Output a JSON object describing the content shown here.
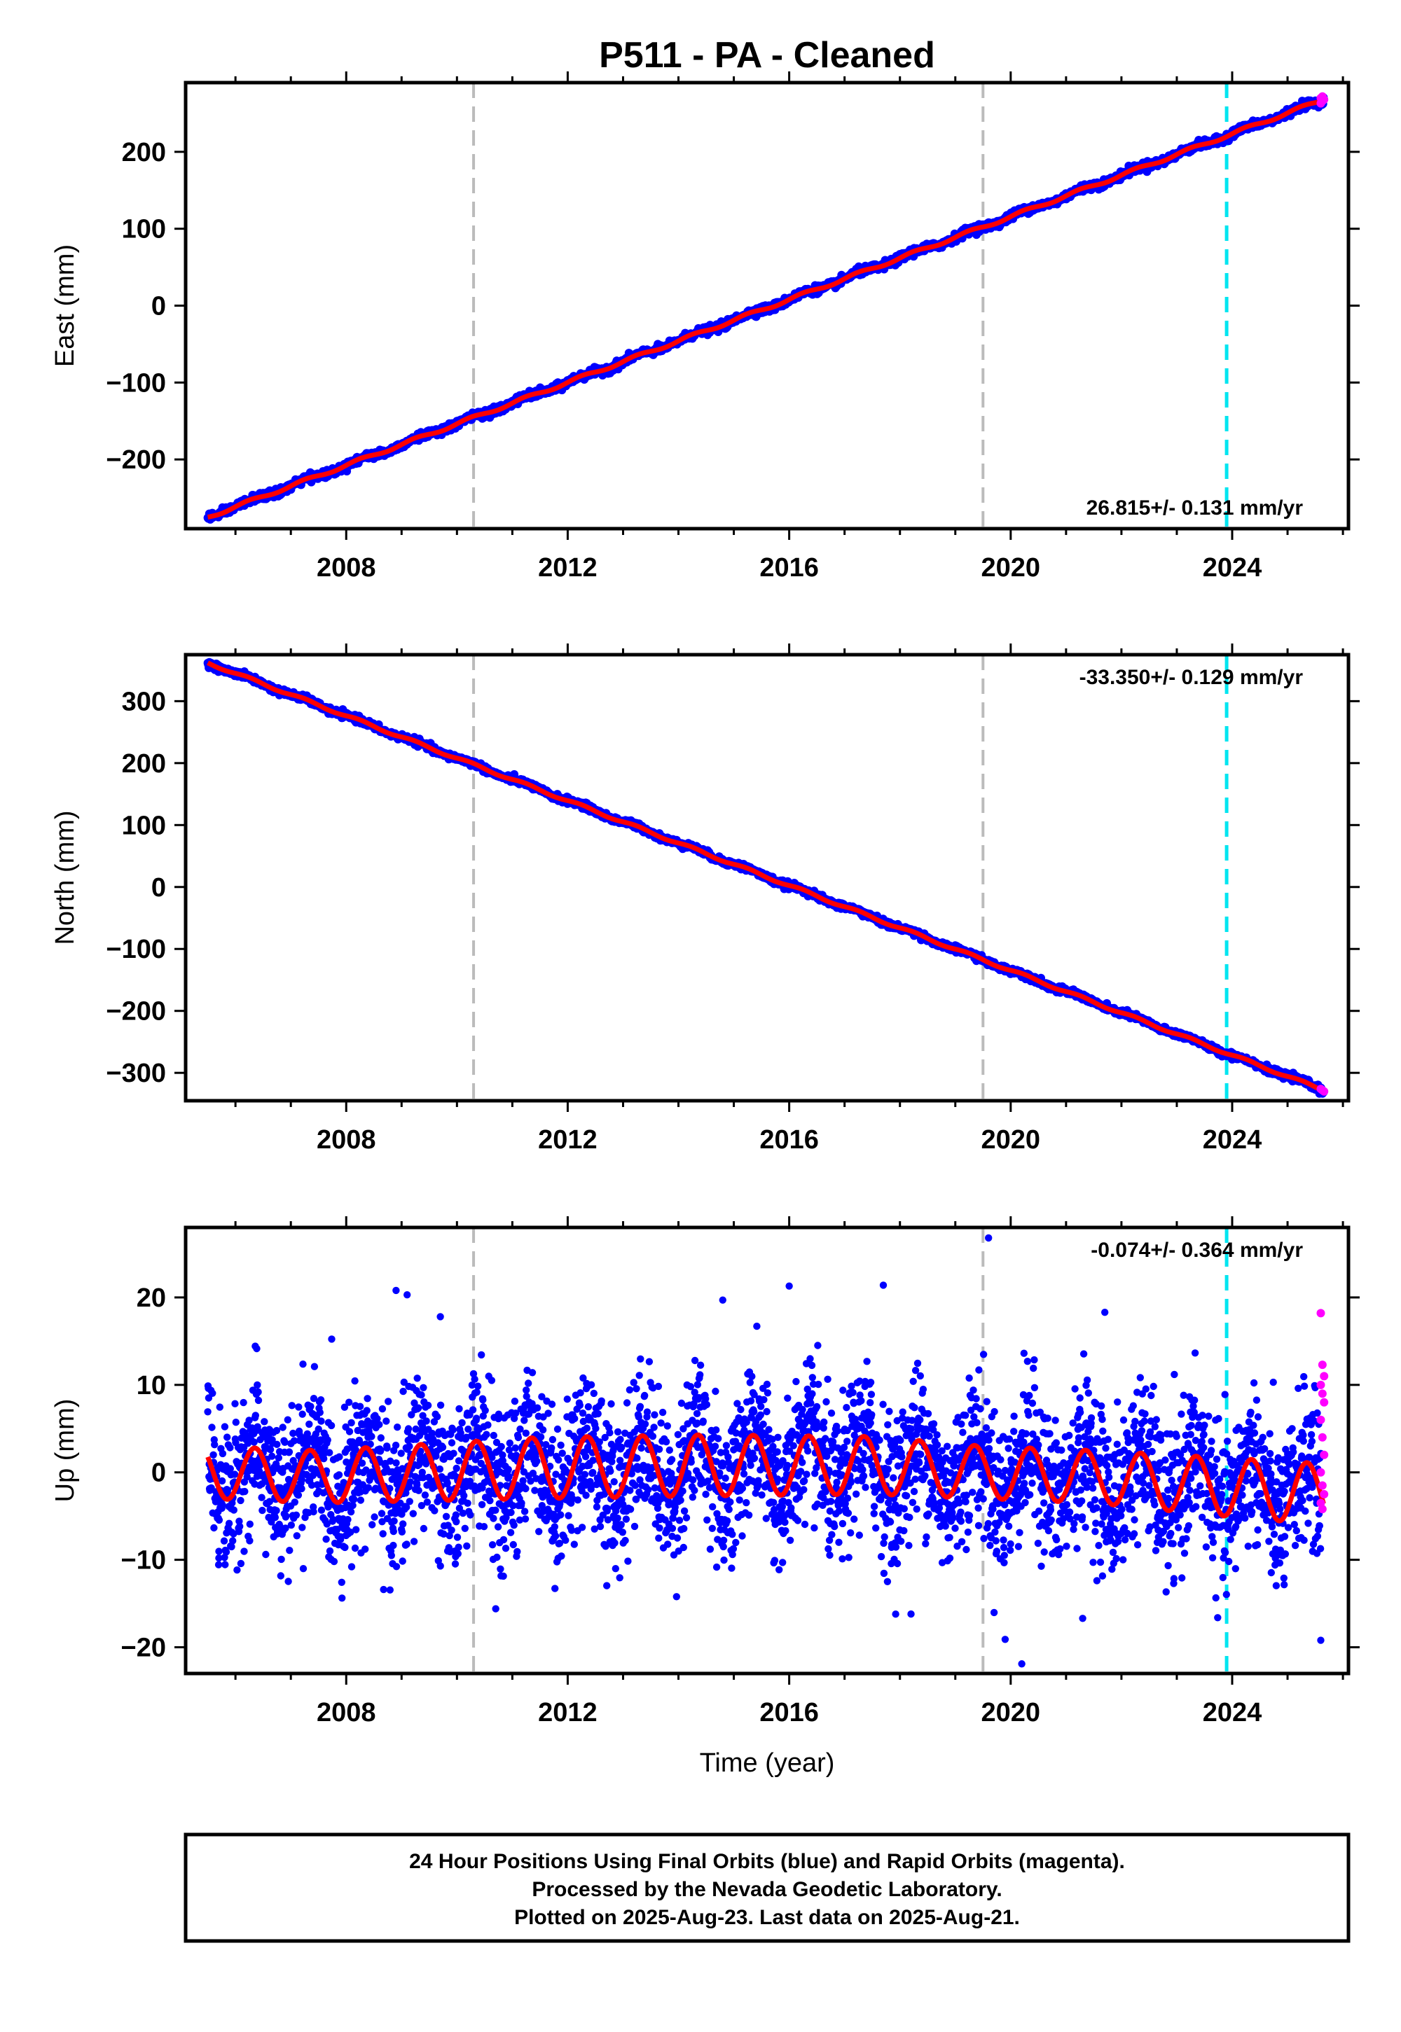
{
  "title": "P511  - PA - Cleaned",
  "colors": {
    "final": "#0000ff",
    "rapid": "#ff00ff",
    "model": "#ff0000",
    "event_gray": "#bbbbbb",
    "event_cyan": "#00e5f0"
  },
  "chart_data": [
    {
      "type": "scatter",
      "name": "east",
      "ylabel": "East (mm)",
      "xlabel": "",
      "xlim": [
        2005.1,
        2026.1
      ],
      "ylim": [
        -290,
        290
      ],
      "yticks": [
        200,
        100,
        0,
        -100,
        -200
      ],
      "ytick_labels": [
        "200",
        "100",
        "0",
        "−100",
        "−200"
      ],
      "xticks": [
        2008,
        2012,
        2016,
        2020,
        2024
      ],
      "xtick_labels": [
        "2008",
        "2012",
        "2016",
        "2020",
        "2024"
      ],
      "rate_text": "26.815+/- 0.131 mm/yr",
      "rate_position": "bottom-right",
      "trend": {
        "x": [
          2005.5,
          2025.65
        ],
        "y": [
          -275,
          268
        ]
      },
      "seasonal_amplitude": 2,
      "scatter_noise": 2.5,
      "rapid_y": [
        263,
        266,
        268,
        270,
        272
      ],
      "event_lines_gray": [
        2010.3,
        2019.5
      ],
      "event_lines_cyan": [
        2023.9
      ]
    },
    {
      "type": "scatter",
      "name": "north",
      "ylabel": "North (mm)",
      "xlabel": "",
      "xlim": [
        2005.1,
        2026.1
      ],
      "ylim": [
        -345,
        375
      ],
      "yticks": [
        300,
        200,
        100,
        0,
        -100,
        -200,
        -300
      ],
      "ytick_labels": [
        "300",
        "200",
        "100",
        "0",
        "−100",
        "−200",
        "−300"
      ],
      "xticks": [
        2008,
        2012,
        2016,
        2020,
        2024
      ],
      "xtick_labels": [
        "2008",
        "2012",
        "2016",
        "2020",
        "2024"
      ],
      "rate_text": "-33.350+/- 0.129 mm/yr",
      "rate_position": "top-right",
      "trend": {
        "x": [
          2005.5,
          2025.65
        ],
        "y": [
          362,
          -328
        ]
      },
      "seasonal_amplitude": 2,
      "scatter_noise": 2.5,
      "rapid_y": [
        -326,
        -328,
        -330
      ],
      "event_lines_gray": [
        2010.3,
        2019.5
      ],
      "event_lines_cyan": [
        2023.9
      ]
    },
    {
      "type": "scatter",
      "name": "up",
      "ylabel": "Up (mm)",
      "xlabel": "Time (year)",
      "xlim": [
        2005.1,
        2026.1
      ],
      "ylim": [
        -23,
        28
      ],
      "yticks": [
        20,
        10,
        0,
        -10,
        -20
      ],
      "ytick_labels": [
        "20",
        "10",
        "0",
        "−10",
        "−20"
      ],
      "xticks": [
        2008,
        2012,
        2016,
        2020,
        2024
      ],
      "xtick_labels": [
        "2008",
        "2012",
        "2016",
        "2020",
        "2024"
      ],
      "rate_text": "-0.074+/- 0.364 mm/yr",
      "rate_position": "top-right",
      "seasonal_model": {
        "x": [
          2005.5,
          2007.5,
          2011.5,
          2014.5,
          2017.5,
          2019.5,
          2021.5,
          2023.5,
          2025.65
        ],
        "offset": [
          0,
          -0.5,
          0.5,
          0.8,
          0.8,
          0,
          -0.5,
          -1.5,
          -2.5
        ],
        "amplitude": [
          3,
          3,
          3.5,
          3.5,
          3.3,
          3,
          3,
          3.3,
          3.5
        ]
      },
      "scatter_noise": 4.2,
      "outliers": [
        [
          2019.6,
          26.8
        ],
        [
          2008.9,
          20.8
        ],
        [
          2009.1,
          20.3
        ],
        [
          2016.0,
          21.3
        ],
        [
          2017.7,
          21.4
        ],
        [
          2014.8,
          19.7
        ],
        [
          2021.7,
          18.3
        ],
        [
          2009.7,
          17.8
        ],
        [
          2020.2,
          -21.9
        ],
        [
          2018.2,
          -16.2
        ],
        [
          2021.3,
          -16.7
        ],
        [
          2010.7,
          -15.6
        ],
        [
          2019.9,
          -19.1
        ],
        [
          2025.6,
          -19.2
        ],
        [
          2005.7,
          -9.8
        ]
      ],
      "rapid_y": [
        18.2,
        12.3,
        11,
        10,
        9,
        8,
        6,
        4,
        2,
        0,
        -1.5,
        -2.5,
        -3.5,
        -4.2
      ],
      "event_lines_gray": [
        2010.3,
        2019.5
      ],
      "event_lines_cyan": [
        2023.9
      ]
    }
  ],
  "caption": {
    "line1": "24 Hour Positions Using Final Orbits (blue) and Rapid Orbits (magenta).",
    "line2": "Processed by the Nevada Geodetic Laboratory.",
    "line3": "Plotted on 2025-Aug-23. Last data on 2025-Aug-21."
  }
}
